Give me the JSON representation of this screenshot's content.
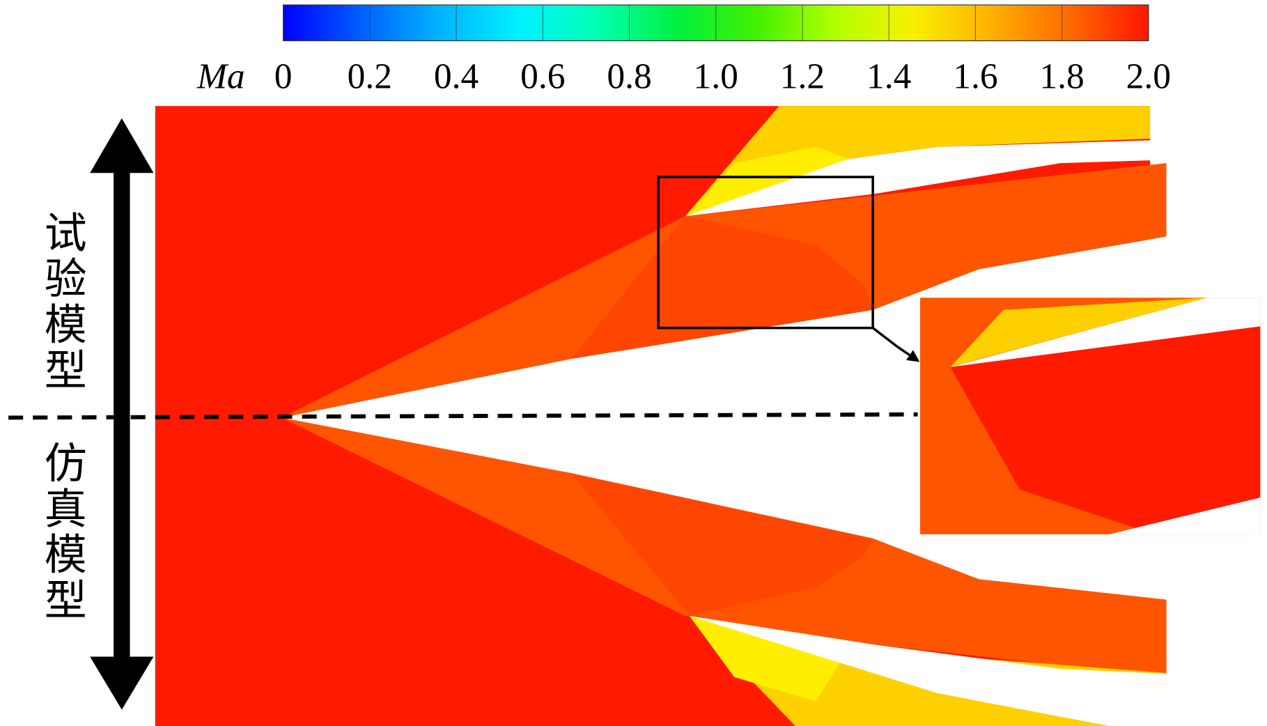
{
  "colorbar": {
    "label": "Ma",
    "lim": [
      0,
      2
    ],
    "ticks": [
      0,
      0.2,
      0.4,
      0.6,
      0.8,
      {
        "value": 1,
        "label": "1.0"
      },
      1.2,
      1.4,
      1.6,
      1.8,
      {
        "value": 2,
        "label": "2.0"
      }
    ],
    "colors": [
      "#0000ff",
      "#0060ff",
      "#00b4ff",
      "#00f0ff",
      "#00ffb0",
      "#00f040",
      "#40f000",
      "#b0ff00",
      "#f8f000",
      "#ffb000",
      "#ff6a00",
      "#ff1500"
    ]
  },
  "labels": {
    "top": "试验模型",
    "bottom": "仿真模型"
  }
}
